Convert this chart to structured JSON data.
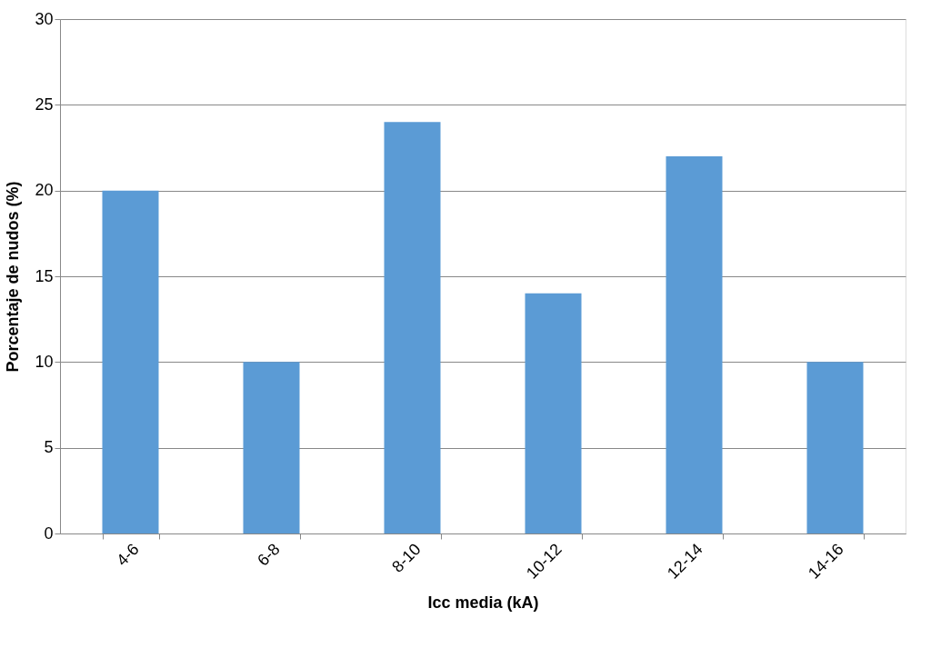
{
  "chart_data": {
    "type": "bar",
    "xlabel": "Icc media (kA)",
    "ylabel": "Porcentaje de nudos (%)",
    "categories": [
      "4-6",
      "6-8",
      "8-10",
      "10-12",
      "12-14",
      "14-16"
    ],
    "values": [
      20,
      10,
      24,
      14,
      22,
      10
    ],
    "color": "#5b9bd5",
    "ylim": [
      0,
      30
    ],
    "yticks": [
      0,
      5,
      10,
      15,
      20,
      25,
      30
    ],
    "grid": "y"
  }
}
